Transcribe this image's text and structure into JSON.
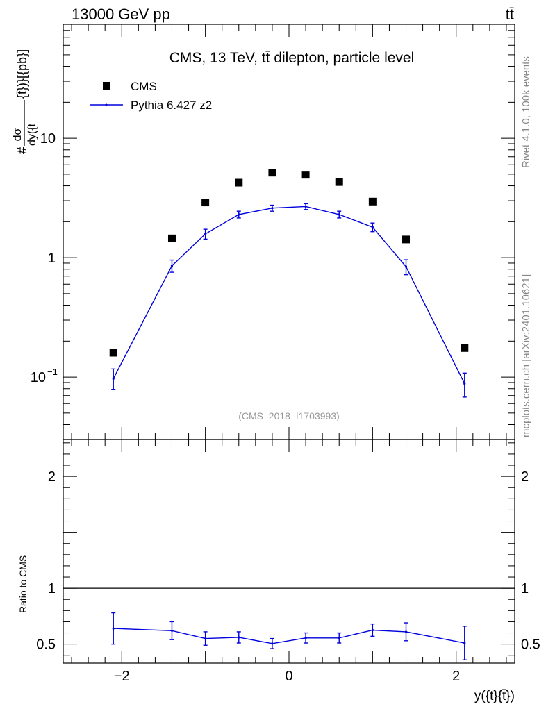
{
  "header": {
    "energy_label": "13000 GeV pp",
    "process_label": "tt̄"
  },
  "side_labels": {
    "rivet": "Rivet 4.1.0,  100k events",
    "mcplots": "mcplots.cern.ch [arXiv:2401.10621]"
  },
  "chart_data": {
    "type": "scatter",
    "title": "CMS, 13 TeV, tt̄ dilepton, particle level",
    "watermark": "(CMS_2018_I1703993)",
    "xlabel": "y({t}{t̄})",
    "ylabel": "#dσ/dy({t}{t̄}) [pb]",
    "ylabel_parts": {
      "prefix": "#",
      "numerator": "dσ",
      "denominator": "dy({t",
      "tail": "{t̄})}[{pb}]"
    },
    "ratio_ylabel": "Ratio to CMS",
    "xlim": [
      -2.7,
      2.7
    ],
    "ylim": [
      0.03,
      90
    ],
    "ratio_ylim": [
      0.33,
      2.33
    ],
    "x_ticks": [
      {
        "value": -2,
        "label": "−2"
      },
      {
        "value": 0,
        "label": "0"
      },
      {
        "value": 2,
        "label": "2"
      }
    ],
    "y_ticks": [
      {
        "value": 0.1,
        "base": "10",
        "exp": "−1"
      },
      {
        "value": 1,
        "base": "1",
        "exp": ""
      },
      {
        "value": 10,
        "base": "10",
        "exp": ""
      }
    ],
    "ratio_ticks": [
      {
        "value": 0.5,
        "label": "0.5"
      },
      {
        "value": 1,
        "label": "1"
      },
      {
        "value": 2,
        "label": "2"
      }
    ],
    "legend_position": "top-left",
    "series": [
      {
        "name": "CMS",
        "style": "markers",
        "color": "#000000",
        "x": [
          -2.1,
          -1.4,
          -1.0,
          -0.6,
          -0.2,
          0.2,
          0.6,
          1.0,
          1.4,
          2.1
        ],
        "y": [
          0.16,
          1.45,
          2.9,
          4.25,
          5.15,
          4.95,
          4.3,
          2.95,
          1.42,
          0.175
        ]
      },
      {
        "name": "Pythia 6.427 z2",
        "style": "line",
        "color": "#0000dd",
        "x": [
          -2.1,
          -1.4,
          -1.0,
          -0.6,
          -0.2,
          0.2,
          0.6,
          1.0,
          1.4,
          2.1
        ],
        "y": [
          0.097,
          0.855,
          1.58,
          2.3,
          2.6,
          2.68,
          2.3,
          1.8,
          0.84,
          0.088
        ],
        "y_err_low": [
          0.018,
          0.1,
          0.15,
          0.15,
          0.15,
          0.15,
          0.15,
          0.15,
          0.12,
          0.02
        ],
        "y_err_high": [
          0.02,
          0.1,
          0.15,
          0.15,
          0.15,
          0.15,
          0.15,
          0.15,
          0.12,
          0.02
        ],
        "ratio": [
          0.64,
          0.62,
          0.55,
          0.56,
          0.505,
          0.555,
          0.555,
          0.625,
          0.61,
          0.51
        ],
        "ratio_err": [
          0.14,
          0.08,
          0.06,
          0.05,
          0.045,
          0.045,
          0.045,
          0.055,
          0.08,
          0.15
        ]
      }
    ]
  }
}
